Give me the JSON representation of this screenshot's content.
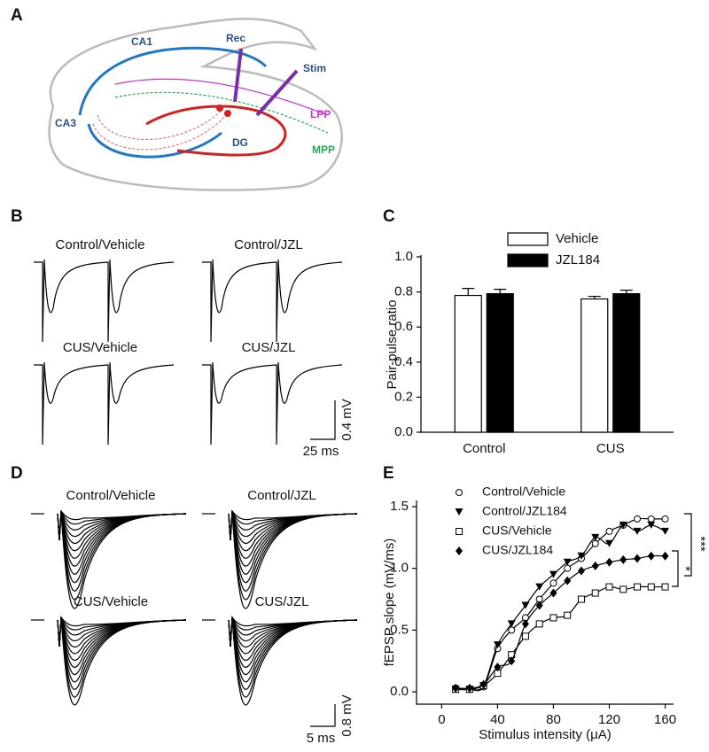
{
  "panel_labels": [
    "A",
    "B",
    "C",
    "D",
    "E"
  ],
  "diagram": {
    "labels": [
      "CA1",
      "Rec",
      "Stim",
      "CA3",
      "DG",
      "LPP",
      "MPP"
    ]
  },
  "traces_b": {
    "labels": [
      "Control/Vehicle",
      "Control/JZL",
      "CUS/Vehicle",
      "CUS/JZL"
    ],
    "scale_y": "0.4 mV",
    "scale_x": "25 ms"
  },
  "traces_d": {
    "labels": [
      "Control/Vehicle",
      "Control/JZL",
      "CUS/Vehicle",
      "CUS/JZL"
    ],
    "scale_y": "0.8 mV",
    "scale_x": "5 ms"
  },
  "chart_data": [
    {
      "type": "bar",
      "ylabel": "Pair-pulse ratio",
      "categories": [
        "Control",
        "CUS"
      ],
      "series": [
        {
          "name": "Vehicle",
          "color": "#ffffff",
          "values": [
            0.78,
            0.76
          ],
          "errors": [
            0.04,
            0.015
          ]
        },
        {
          "name": "JZL184",
          "color": "#000000",
          "values": [
            0.79,
            0.79
          ],
          "errors": [
            0.025,
            0.02
          ]
        }
      ],
      "ylim": [
        0,
        1.0
      ],
      "yticks": [
        {
          "value": 0,
          "label": "0.0"
        },
        {
          "value": 0.2,
          "label": "0.2"
        },
        {
          "value": 0.4,
          "label": "0.4"
        },
        {
          "value": 0.6,
          "label": "0.6"
        },
        {
          "value": 0.8,
          "label": "0.8"
        },
        {
          "value": 1.0,
          "label": "1.0"
        }
      ],
      "legend": "top"
    },
    {
      "type": "scatter",
      "xlabel": "Stimulus intensity (μA)",
      "ylabel": "fEPSP slope (mV/ms)",
      "x": [
        10,
        20,
        30,
        40,
        50,
        60,
        70,
        80,
        90,
        100,
        110,
        120,
        130,
        140,
        150,
        160
      ],
      "series": [
        {
          "name": "Control/Vehicle",
          "marker": "open-circle",
          "color": "#000000",
          "values": [
            0.03,
            0.02,
            0.04,
            0.35,
            0.5,
            0.6,
            0.75,
            0.88,
            1.0,
            1.08,
            1.2,
            1.3,
            1.35,
            1.4,
            1.4,
            1.4
          ]
        },
        {
          "name": "Control/JZL184",
          "marker": "triangle-down",
          "color": "#000000",
          "values": [
            0.02,
            0.02,
            0.05,
            0.38,
            0.55,
            0.7,
            0.85,
            0.95,
            1.05,
            1.1,
            1.25,
            1.2,
            1.35,
            1.3,
            1.35,
            1.3
          ]
        },
        {
          "name": "CUS/Vehicle",
          "marker": "open-square",
          "color": "#000000",
          "values": [
            0.02,
            0.02,
            0.05,
            0.15,
            0.3,
            0.45,
            0.55,
            0.6,
            0.62,
            0.75,
            0.8,
            0.85,
            0.83,
            0.85,
            0.85,
            0.85
          ]
        },
        {
          "name": "CUS/JZL184",
          "marker": "diamond",
          "color": "#000000",
          "values": [
            0.03,
            0.03,
            0.06,
            0.2,
            0.25,
            0.55,
            0.7,
            0.8,
            0.9,
            0.98,
            1.02,
            1.05,
            1.07,
            1.08,
            1.1,
            1.1
          ]
        }
      ],
      "xlim": [
        -18,
        166
      ],
      "ylim": [
        -0.1,
        1.55
      ],
      "xticks": [
        0,
        40,
        80,
        120,
        160
      ],
      "yticks": [
        {
          "value": 0,
          "label": "0.0"
        },
        {
          "value": 0.5,
          "label": "0.5"
        },
        {
          "value": 1.0,
          "label": "1.0"
        },
        {
          "value": 1.5,
          "label": "1.5"
        }
      ],
      "annotations": [
        "***",
        "*"
      ]
    }
  ]
}
